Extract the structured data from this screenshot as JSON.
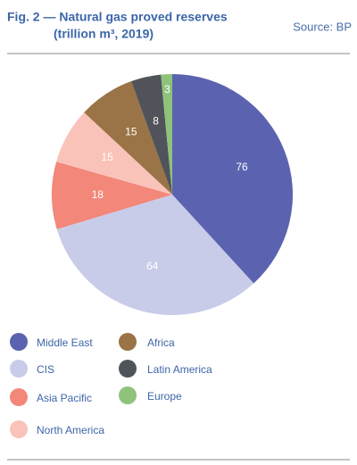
{
  "chart_data": {
    "type": "pie",
    "title": "Fig. 2 — Natural gas proved reserves",
    "subtitle": "(trillion m³, 2019)",
    "source": "Source: BP",
    "categories": [
      "Middle East",
      "CIS",
      "Asia Pacific",
      "North America",
      "Africa",
      "Latin America",
      "Europe"
    ],
    "values": [
      76,
      64,
      18,
      15,
      15,
      8,
      3
    ],
    "colors": [
      "#5b63b0",
      "#c9cce9",
      "#f2877a",
      "#f9c3b9",
      "#9a7446",
      "#505359",
      "#8fc27b"
    ]
  }
}
